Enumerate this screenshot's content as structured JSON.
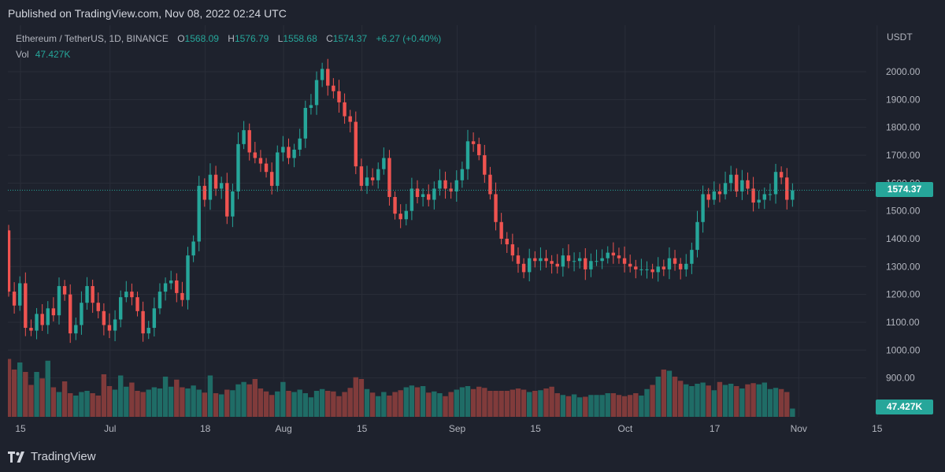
{
  "header": {
    "published_text": "Published on TradingView.com, Nov 08, 2022 02:24 UTC"
  },
  "legend": {
    "symbol": "Ethereum / TetherUS, 1D, BINANCE",
    "open_label": "O",
    "open_value": "1568.09",
    "high_label": "H",
    "high_value": "1576.79",
    "low_label": "L",
    "low_value": "1558.68",
    "close_label": "C",
    "close_value": "1574.37",
    "change": "+6.27 (+0.40%)",
    "vol_label": "Vol",
    "vol_value": "47.427K"
  },
  "price_scale": {
    "currency": "USDT",
    "last_price_badge": "1574.37",
    "volume_badge": "47.427K"
  },
  "footer": {
    "brand": "TradingView",
    "logo_icon": "tradingview-logo-icon"
  },
  "colors": {
    "background": "#1e222d",
    "up": "#26a69a",
    "down": "#ef5350",
    "up_volume": "#1f6c66",
    "down_volume": "#803b3b",
    "grid": "#2a2e39",
    "text": "#b2b5be"
  },
  "chart_data": {
    "type": "candlestick",
    "symbol": "Ethereum / TetherUS",
    "interval": "1D",
    "exchange": "BINANCE",
    "ylim": [
      860,
      2060
    ],
    "y_ticks": [
      "900.00",
      "1000.00",
      "1100.00",
      "1200.00",
      "1300.00",
      "1400.00",
      "1500.00",
      "1600.00",
      "1700.00",
      "1800.00",
      "1900.00",
      "2000.00"
    ],
    "x_ticks": [
      "15",
      "Jul",
      "18",
      "Aug",
      "15",
      "Sep",
      "15",
      "Oct",
      "17",
      "Nov",
      "15"
    ],
    "x_tick_dates": [
      "2022-06-15",
      "2022-07-01",
      "2022-07-18",
      "2022-08-01",
      "2022-08-15",
      "2022-09-01",
      "2022-09-15",
      "2022-10-01",
      "2022-10-17",
      "2022-11-01",
      "2022-11-15"
    ],
    "start_date": "2022-06-13",
    "last_price": 1574.37,
    "closes": [
      1210,
      1160,
      1240,
      1080,
      1070,
      1130,
      1090,
      1150,
      1125,
      1230,
      1200,
      1060,
      1090,
      1170,
      1230,
      1170,
      1140,
      1090,
      1070,
      1110,
      1190,
      1210,
      1190,
      1140,
      1060,
      1080,
      1150,
      1210,
      1240,
      1250,
      1205,
      1180,
      1340,
      1390,
      1590,
      1540,
      1630,
      1580,
      1600,
      1480,
      1570,
      1740,
      1790,
      1710,
      1690,
      1670,
      1640,
      1590,
      1710,
      1730,
      1690,
      1720,
      1760,
      1870,
      1880,
      1970,
      2010,
      1950,
      1930,
      1890,
      1840,
      1820,
      1660,
      1590,
      1620,
      1610,
      1650,
      1690,
      1550,
      1490,
      1470,
      1500,
      1580,
      1550,
      1560,
      1540,
      1580,
      1610,
      1580,
      1570,
      1610,
      1650,
      1750,
      1740,
      1700,
      1630,
      1560,
      1460,
      1400,
      1380,
      1340,
      1310,
      1280,
      1330,
      1320,
      1330,
      1320,
      1310,
      1300,
      1340,
      1320,
      1320,
      1330,
      1290,
      1320,
      1320,
      1330,
      1350,
      1340,
      1330,
      1310,
      1300,
      1290,
      1290,
      1290,
      1280,
      1300,
      1290,
      1330,
      1310,
      1290,
      1310,
      1360,
      1460,
      1560,
      1540,
      1570,
      1560,
      1600,
      1630,
      1570,
      1610,
      1580,
      1530,
      1540,
      1560,
      1560,
      1640,
      1620,
      1540,
      1574
    ],
    "volumes": [
      98,
      80,
      92,
      76,
      54,
      76,
      65,
      95,
      50,
      42,
      60,
      40,
      36,
      42,
      44,
      40,
      36,
      72,
      52,
      46,
      70,
      51,
      58,
      44,
      42,
      46,
      50,
      48,
      68,
      51,
      63,
      50,
      48,
      53,
      46,
      41,
      70,
      40,
      38,
      46,
      45,
      55,
      59,
      55,
      64,
      48,
      43,
      37,
      43,
      59,
      44,
      42,
      46,
      40,
      33,
      44,
      47,
      44,
      43,
      35,
      42,
      49,
      67,
      64,
      47,
      41,
      35,
      42,
      36,
      42,
      45,
      50,
      53,
      50,
      52,
      41,
      43,
      40,
      35,
      42,
      46,
      50,
      52,
      47,
      51,
      49,
      44,
      44,
      44,
      44,
      46,
      48,
      46,
      42,
      44,
      45,
      48,
      51,
      40,
      37,
      35,
      38,
      33,
      34,
      37,
      37,
      37,
      40,
      40,
      37,
      35,
      37,
      40,
      36,
      47,
      54,
      68,
      80,
      78,
      68,
      61,
      55,
      52,
      56,
      58,
      53,
      45,
      59,
      54,
      56,
      52,
      48,
      55,
      57,
      55,
      58,
      47,
      49,
      47,
      42,
      14
    ]
  }
}
